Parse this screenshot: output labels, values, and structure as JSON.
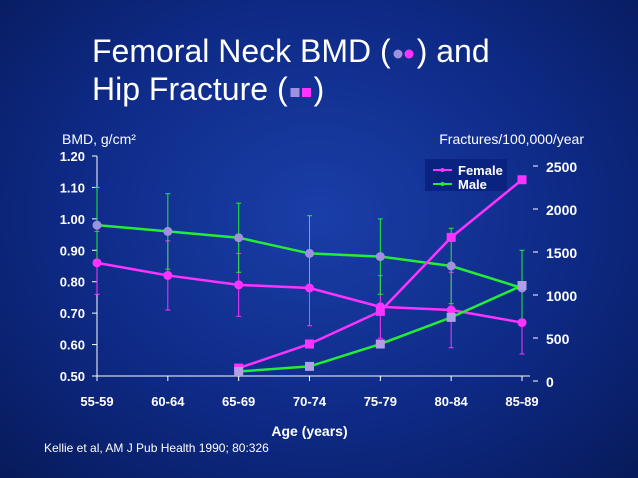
{
  "slide": {
    "title_line1_pre": "Femoral Neck BMD (",
    "title_line1_post": ") and",
    "title_line2_pre": "Hip Fracture (",
    "title_line2_post": ")",
    "source": "Kellie et al, AM J Pub Health 1990; 80:326"
  },
  "colors": {
    "female": "#ff33ff",
    "male": "#22ee33",
    "bmd_marker": "#a090e0",
    "fracture_marker": "#b0a0e8",
    "legend_bg": "#0a2380"
  },
  "chart_data": {
    "type": "line",
    "xlabel": "Age (years)",
    "categories": [
      "55-59",
      "60-64",
      "65-69",
      "70-74",
      "75-79",
      "80-84",
      "85-89"
    ],
    "left_axis": {
      "label": "BMD, g/cm²",
      "ylim": [
        0.5,
        1.2
      ],
      "ticks": [
        "0.50",
        "0.60",
        "0.70",
        "0.80",
        "0.90",
        "1.00",
        "1.10",
        "1.20"
      ]
    },
    "right_axis": {
      "label": "Fractures/100,000/year",
      "ylim": [
        0,
        2500
      ],
      "ticks": [
        "0",
        "500",
        "1000",
        "1500",
        "2000",
        "2500"
      ]
    },
    "legend": {
      "position": "top-right",
      "entries": [
        "Female",
        "Male"
      ]
    },
    "series": [
      {
        "name": "Female",
        "measure": "BMD",
        "axis": "left",
        "values": [
          0.86,
          0.82,
          0.79,
          0.78,
          0.72,
          0.71,
          0.67
        ],
        "error": [
          0.1,
          0.11,
          0.1,
          0.12,
          0.1,
          0.12,
          0.1
        ]
      },
      {
        "name": "Male",
        "measure": "BMD",
        "axis": "left",
        "values": [
          0.98,
          0.96,
          0.94,
          0.89,
          0.88,
          0.85,
          0.78
        ],
        "error": [
          0.12,
          0.12,
          0.11,
          0.12,
          0.12,
          0.12,
          0.12
        ]
      },
      {
        "name": "Female",
        "measure": "Fractures",
        "axis": "right",
        "values": [
          null,
          null,
          150,
          430,
          810,
          1670,
          2340
        ]
      },
      {
        "name": "Male",
        "measure": "Fractures",
        "axis": "right",
        "values": [
          null,
          null,
          110,
          170,
          430,
          740,
          1110
        ]
      }
    ]
  }
}
